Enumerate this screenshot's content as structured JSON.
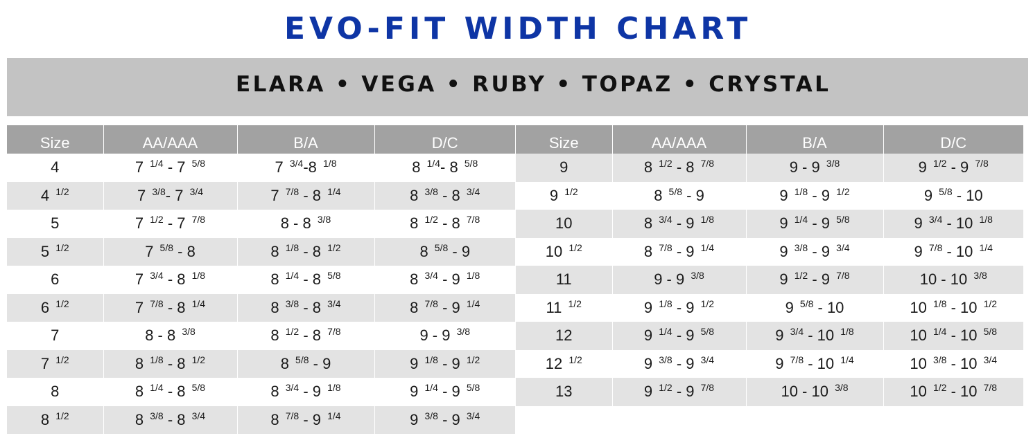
{
  "title": "EVO-FIT WIDTH CHART",
  "subtitle": "ELARA • VEGA • RUBY • TOPAZ • CRYSTAL",
  "tables": [
    {
      "headers": [
        "Size",
        "AA/AAA",
        "B/A",
        "D/C"
      ],
      "rows": [
        [
          "4",
          "7 1/4 - 7 5/8",
          "7 3/4-8 1/8",
          "8 1/4- 8 5/8"
        ],
        [
          "4 1/2",
          "7 3/8- 7 3/4",
          "7 7/8 - 8 1/4",
          "8 3/8 - 8 3/4"
        ],
        [
          "5",
          "7 1/2 - 7 7/8",
          "8 - 8 3/8",
          "8 1/2 - 8 7/8"
        ],
        [
          "5 1/2",
          "7 5/8 - 8",
          "8 1/8 - 8 1/2",
          "8 5/8 - 9"
        ],
        [
          "6",
          "7 3/4 - 8 1/8",
          "8 1/4 - 8 5/8",
          "8 3/4 - 9 1/8"
        ],
        [
          "6 1/2",
          "7 7/8 - 8 1/4",
          "8 3/8 - 8 3/4",
          "8 7/8 - 9 1/4"
        ],
        [
          "7",
          "8 - 8 3/8",
          "8 1/2 - 8 7/8",
          "9 - 9 3/8"
        ],
        [
          "7 1/2",
          "8 1/8 - 8 1/2",
          "8 5/8 - 9",
          "9 1/8 - 9 1/2"
        ],
        [
          "8",
          "8 1/4 - 8 5/8",
          "8 3/4 - 9 1/8",
          "9 1/4 - 9 5/8"
        ],
        [
          "8 1/2",
          "8 3/8 - 8 3/4",
          "8 7/8 - 9 1/4",
          "9 3/8 - 9 3/4"
        ]
      ]
    },
    {
      "headers": [
        "Size",
        "AA/AAA",
        "B/A",
        "D/C"
      ],
      "rows": [
        [
          "9",
          "8 1/2 - 8 7/8",
          "9 - 9 3/8",
          "9 1/2 - 9 7/8"
        ],
        [
          "9 1/2",
          "8 5/8 - 9",
          "9 1/8 - 9 1/2",
          "9 5/8 - 10"
        ],
        [
          "10",
          "8 3/4 - 9 1/8",
          "9 1/4 - 9 5/8",
          "9 3/4 - 10 1/8"
        ],
        [
          "10 1/2",
          "8 7/8 - 9 1/4",
          "9 3/8 - 9 3/4",
          "9 7/8 - 10 1/4"
        ],
        [
          "11",
          "9 - 9 3/8",
          "9 1/2 - 9 7/8",
          "10 - 10 3/8"
        ],
        [
          "11 1/2",
          "9 1/8 - 9 1/2",
          "9 5/8 - 10",
          "10 1/8 - 10 1/2"
        ],
        [
          "12",
          "9 1/4 - 9 5/8",
          "9 3/4 - 10 1/8",
          "10 1/4 - 10 5/8"
        ],
        [
          "12 1/2",
          "9 3/8 - 9 3/4",
          "9 7/8 - 10 1/4",
          "10 3/8 - 10 3/4"
        ],
        [
          "13",
          "9 1/2 - 9 7/8",
          "10 - 10 3/8",
          "10 1/2 - 10 7/8"
        ]
      ]
    }
  ]
}
